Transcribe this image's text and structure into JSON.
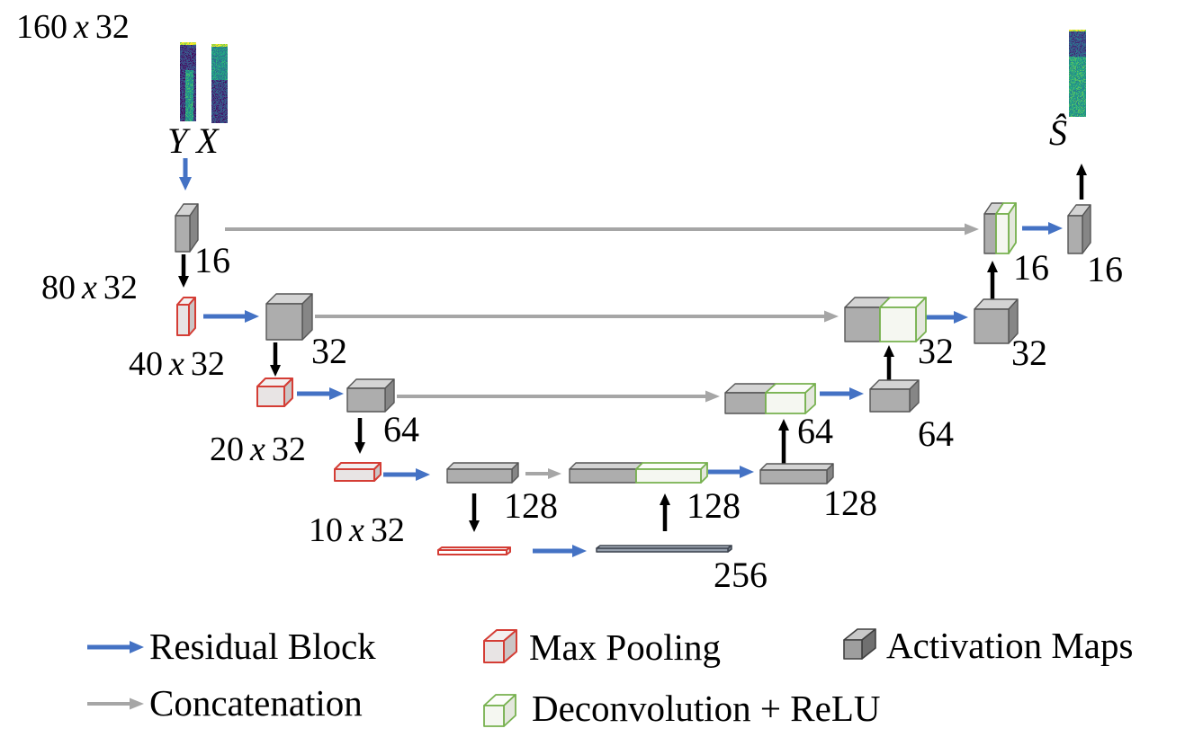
{
  "labels": {
    "input_y": "Y",
    "input_x": "X",
    "output": "Ŝ"
  },
  "sizes": [
    {
      "rows": "160",
      "sep": "x",
      "cols": "32"
    },
    {
      "rows": "80",
      "sep": "x",
      "cols": "32"
    },
    {
      "rows": "40",
      "sep": "x",
      "cols": "32"
    },
    {
      "rows": "20",
      "sep": "x",
      "cols": "32"
    },
    {
      "rows": "10",
      "sep": "x",
      "cols": "32"
    }
  ],
  "channels": {
    "enc16": "16",
    "enc32": "32",
    "enc64": "64",
    "enc128": "128",
    "bottleneck": "256",
    "up128": "128",
    "dec128": "128",
    "up64": "64",
    "dec64": "64",
    "up32": "32",
    "dec32": "32",
    "up16": "16",
    "dec16": "16"
  },
  "legend": {
    "residual": "Residual Block",
    "concatenation": "Concatenation",
    "maxpool": "Max Pooling",
    "deconv": "Deconvolution + ReLU",
    "activation": "Activation Maps"
  },
  "colors": {
    "residual_arrow": "#4472c4",
    "concat_arrow": "#a6a6a6",
    "pool_arrow": "#000000",
    "box_styles": {
      "gray": {
        "front": "#adadad",
        "top": "#d4d4d4",
        "side": "#868686",
        "stroke": "#555555",
        "sw": 1.4
      },
      "gray2": {
        "front": "#9e9e9e",
        "top": "#c9c9c9",
        "side": "#707070",
        "stroke": "#404040",
        "sw": 1.6
      },
      "red": {
        "front": "#e8e4e4",
        "top": "#f3f0f0",
        "side": "#cbc5c5",
        "stroke": "#d43d35",
        "sw": 2
      },
      "redflat": {
        "front": "#ffffff",
        "top": "#f4f1f1",
        "side": "#e2dcdc",
        "stroke": "#d43d35",
        "sw": 2
      },
      "green": {
        "front": "#f5f7f1",
        "top": "#fcfdfa",
        "side": "#e4e7dd",
        "stroke": "#77b14f",
        "sw": 1.8
      },
      "dark": {
        "front": "#96a0ad",
        "top": "#b4bcc7",
        "side": "#757e8a",
        "stroke": "#3c434e",
        "sw": 1.5
      }
    },
    "viridis_palette": [
      "#440154",
      "#414487",
      "#2a788e",
      "#22a884",
      "#7ad151",
      "#fde725"
    ]
  }
}
